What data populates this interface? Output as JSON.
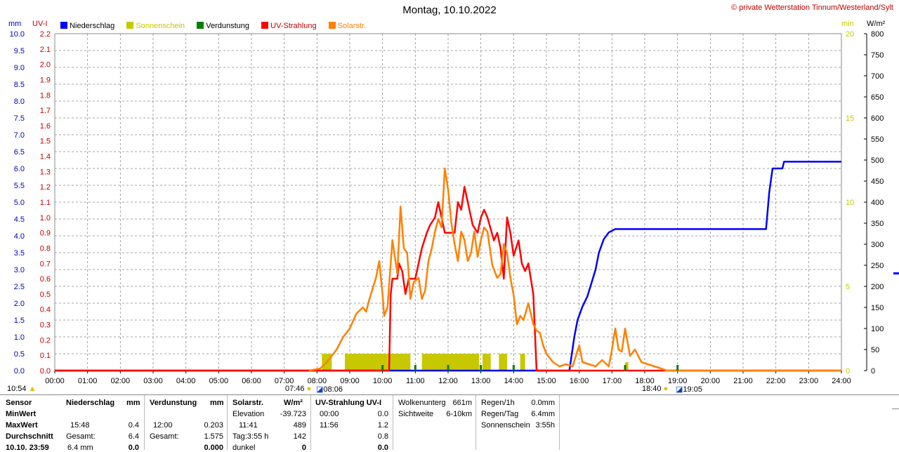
{
  "header": {
    "title": "Montag, 10.10.2022",
    "copyright": "© private Wetterstation Tinnum/Westerland/Sylt",
    "left_unit_mm": "mm",
    "left_unit_uv": "UV-I",
    "right_unit_min": "min",
    "right_unit_wm2": "W/m²"
  },
  "legend": [
    {
      "label": "Niederschlag",
      "color": "#0000ff"
    },
    {
      "label": "Sonnenschein",
      "color": "#c8c800"
    },
    {
      "label": "Verdunstung",
      "color": "#008000"
    },
    {
      "label": "UV-Strahlung",
      "color": "#ff0000"
    },
    {
      "label": "Solarstr.",
      "color": "#ff8000"
    }
  ],
  "chart_data": {
    "type": "line",
    "title": "Montag, 10.10.2022",
    "x_ticks": [
      "00:00",
      "01:00",
      "02:00",
      "03:00",
      "04:00",
      "05:00",
      "06:00",
      "07:00",
      "08:00",
      "09:00",
      "10:00",
      "11:00",
      "12:00",
      "13:00",
      "14:00",
      "15:00",
      "16:00",
      "17:00",
      "18:00",
      "19:00",
      "20:00",
      "21:00",
      "22:00",
      "23:00",
      "24:00"
    ],
    "axes": {
      "mm": {
        "range": [
          0,
          10
        ],
        "ticks": [
          "10.0",
          "9.5",
          "9.0",
          "8.5",
          "8.0",
          "7.5",
          "7.0",
          "6.5",
          "6.0",
          "5.5",
          "5.0",
          "4.5",
          "4.0",
          "3.5",
          "3.0",
          "2.5",
          "2.0",
          "1.5",
          "1.0",
          "0.5",
          "0.0"
        ],
        "color": "#0000c0"
      },
      "uv": {
        "range": [
          0,
          2.2
        ],
        "ticks": [
          "2.2",
          "2.1",
          "2.0",
          "1.9",
          "1.8",
          "1.7",
          "1.6",
          "1.5",
          "1.4",
          "1.3",
          "1.2",
          "1.1",
          "1.0",
          "0.9",
          "0.8",
          "0.7",
          "0.6",
          "0.5",
          "0.4",
          "0.3",
          "0.2",
          "0.1",
          "0.0"
        ],
        "color": "#c00000"
      },
      "min": {
        "range": [
          0,
          20
        ],
        "ticks": [
          "20",
          "15",
          "10",
          "5",
          "0"
        ],
        "color": "#c8c800"
      },
      "wm2": {
        "range": [
          0,
          800
        ],
        "ticks": [
          "800",
          "750",
          "700",
          "650",
          "600",
          "550",
          "500",
          "450",
          "400",
          "350",
          "300",
          "250",
          "200",
          "150",
          "100",
          "50",
          "0"
        ],
        "color": "#000000"
      }
    },
    "grid": true,
    "series": [
      {
        "name": "Niederschlag",
        "axis": "mm",
        "color": "#0000ff",
        "points": [
          [
            0,
            0
          ],
          [
            15.7,
            0
          ],
          [
            15.85,
            1.0
          ],
          [
            15.95,
            1.5
          ],
          [
            16.1,
            1.9
          ],
          [
            16.25,
            2.2
          ],
          [
            16.5,
            3.0
          ],
          [
            16.6,
            3.5
          ],
          [
            16.75,
            3.9
          ],
          [
            16.9,
            4.1
          ],
          [
            17.1,
            4.2
          ],
          [
            21.0,
            4.2
          ],
          [
            21.7,
            4.2
          ],
          [
            21.8,
            5.3
          ],
          [
            21.9,
            6.0
          ],
          [
            22.2,
            6.0
          ],
          [
            22.25,
            6.2
          ],
          [
            24.0,
            6.2
          ]
        ]
      },
      {
        "name": "UV-Strahlung",
        "axis": "uv",
        "color": "#ff0000",
        "points": [
          [
            0,
            0
          ],
          [
            10.2,
            0
          ],
          [
            10.25,
            0.5
          ],
          [
            10.3,
            0.6
          ],
          [
            10.45,
            0.6
          ],
          [
            10.5,
            0.7
          ],
          [
            10.6,
            0.65
          ],
          [
            10.7,
            0.5
          ],
          [
            10.8,
            0.6
          ],
          [
            11.0,
            0.6
          ],
          [
            11.2,
            0.8
          ],
          [
            11.35,
            0.9
          ],
          [
            11.45,
            0.95
          ],
          [
            11.6,
            1.0
          ],
          [
            11.7,
            1.1
          ],
          [
            11.8,
            1.0
          ],
          [
            11.9,
            0.9
          ],
          [
            12.0,
            0.9
          ],
          [
            12.2,
            0.9
          ],
          [
            12.3,
            1.1
          ],
          [
            12.4,
            1.05
          ],
          [
            12.5,
            1.2
          ],
          [
            12.6,
            1.1
          ],
          [
            12.75,
            0.95
          ],
          [
            12.9,
            0.9
          ],
          [
            13.0,
            1.0
          ],
          [
            13.1,
            1.05
          ],
          [
            13.2,
            1.0
          ],
          [
            13.4,
            0.85
          ],
          [
            13.5,
            0.9
          ],
          [
            13.6,
            0.8
          ],
          [
            13.7,
            0.6
          ],
          [
            13.8,
            1.0
          ],
          [
            13.9,
            0.9
          ],
          [
            14.0,
            0.75
          ],
          [
            14.15,
            0.85
          ],
          [
            14.25,
            0.7
          ],
          [
            14.35,
            0.65
          ],
          [
            14.45,
            0.7
          ],
          [
            14.6,
            0.5
          ],
          [
            14.7,
            0
          ],
          [
            24.0,
            0
          ]
        ]
      },
      {
        "name": "Solarstr.",
        "axis": "wm2",
        "color": "#ff8000",
        "points": [
          [
            7.76,
            0
          ],
          [
            8.1,
            5
          ],
          [
            8.3,
            20
          ],
          [
            8.6,
            50
          ],
          [
            8.8,
            80
          ],
          [
            9.0,
            100
          ],
          [
            9.2,
            135
          ],
          [
            9.4,
            150
          ],
          [
            9.5,
            140
          ],
          [
            9.6,
            170
          ],
          [
            9.8,
            220
          ],
          [
            9.9,
            260
          ],
          [
            10.0,
            180
          ],
          [
            10.05,
            130
          ],
          [
            10.15,
            150
          ],
          [
            10.3,
            310
          ],
          [
            10.45,
            230
          ],
          [
            10.55,
            390
          ],
          [
            10.65,
            290
          ],
          [
            10.75,
            280
          ],
          [
            10.85,
            170
          ],
          [
            10.95,
            210
          ],
          [
            11.1,
            220
          ],
          [
            11.2,
            170
          ],
          [
            11.3,
            190
          ],
          [
            11.4,
            260
          ],
          [
            11.5,
            290
          ],
          [
            11.6,
            330
          ],
          [
            11.7,
            360
          ],
          [
            11.8,
            340
          ],
          [
            11.9,
            480
          ],
          [
            12.0,
            430
          ],
          [
            12.1,
            350
          ],
          [
            12.2,
            300
          ],
          [
            12.3,
            260
          ],
          [
            12.4,
            330
          ],
          [
            12.5,
            310
          ],
          [
            12.6,
            260
          ],
          [
            12.7,
            280
          ],
          [
            12.8,
            330
          ],
          [
            12.9,
            270
          ],
          [
            13.0,
            310
          ],
          [
            13.1,
            340
          ],
          [
            13.2,
            330
          ],
          [
            13.35,
            250
          ],
          [
            13.5,
            220
          ],
          [
            13.6,
            230
          ],
          [
            13.7,
            300
          ],
          [
            13.8,
            280
          ],
          [
            13.9,
            220
          ],
          [
            14.0,
            180
          ],
          [
            14.1,
            110
          ],
          [
            14.2,
            130
          ],
          [
            14.3,
            120
          ],
          [
            14.45,
            160
          ],
          [
            14.6,
            110
          ],
          [
            14.7,
            95
          ],
          [
            14.8,
            90
          ],
          [
            14.9,
            60
          ],
          [
            15.0,
            40
          ],
          [
            15.2,
            20
          ],
          [
            15.4,
            10
          ],
          [
            15.6,
            15
          ],
          [
            15.8,
            10
          ],
          [
            16.0,
            60
          ],
          [
            16.1,
            20
          ],
          [
            16.3,
            15
          ],
          [
            16.5,
            10
          ],
          [
            16.7,
            25
          ],
          [
            16.9,
            10
          ],
          [
            17.0,
            50
          ],
          [
            17.1,
            100
          ],
          [
            17.2,
            50
          ],
          [
            17.3,
            45
          ],
          [
            17.4,
            100
          ],
          [
            17.55,
            35
          ],
          [
            17.7,
            50
          ],
          [
            17.9,
            20
          ],
          [
            18.1,
            15
          ],
          [
            18.3,
            10
          ],
          [
            18.5,
            5
          ],
          [
            18.67,
            0
          ],
          [
            24.0,
            0
          ]
        ]
      },
      {
        "name": "Sonnenschein",
        "axis": "min",
        "color": "#c8c800",
        "bars": [
          [
            8.15,
            8.45,
            1
          ],
          [
            8.85,
            10.15,
            1
          ],
          [
            10.15,
            10.85,
            1
          ],
          [
            11.2,
            12.95,
            1
          ],
          [
            13.05,
            13.3,
            1
          ],
          [
            13.55,
            13.8,
            1
          ],
          [
            14.2,
            14.35,
            1
          ],
          [
            17.4,
            17.5,
            0.5
          ]
        ]
      },
      {
        "name": "Verdunstung",
        "axis": "min",
        "color": "#008000",
        "marks": [
          10.0,
          11.0,
          12.0,
          13.0,
          14.0,
          17.4,
          19.0
        ]
      }
    ]
  },
  "sun_markers": {
    "sunrise_civil": "07:46",
    "sunrise": "08:06",
    "sunset": "18:40",
    "sunset_civil": "19:05",
    "moon": "10:54"
  },
  "table": {
    "sensor": {
      "header": "Sensor",
      "rows": [
        "MinWert",
        "MaxWert",
        "Durchschnitt",
        "10.10. 23:59"
      ]
    },
    "niederschlag": {
      "header": "Niederschlag",
      "unit": "mm",
      "max_time": "15:48",
      "max_val": "0.4",
      "gesamt_label": "Gesamt:",
      "gesamt_val": "6.4",
      "last_val": "6.4 mm",
      "last_extra": "0.0"
    },
    "verdunstung": {
      "header": "Verdunstung",
      "unit": "mm",
      "max_time": "12:00",
      "max_val": "0.203",
      "gesamt_label": "Gesamt:",
      "gesamt_val": "1.575",
      "last_val": "0.000"
    },
    "solar": {
      "header": "Solarstr.",
      "unit": "W/m²",
      "elevation_label": "Elevation",
      "elevation_val": "-39.723",
      "max_time": "11:41",
      "max_val": "489",
      "tag_label": "Tag:3:55 h",
      "tag_val": "142",
      "dunkel_label": "dunkel",
      "dunkel_val": "0"
    },
    "uv": {
      "header": "UV-Strahlung UV-I",
      "min_time": "00:00",
      "min_val": "0.0",
      "max_time": "11:56",
      "max_val": "1.2",
      "avg_val": "0.8",
      "last_val": "0.0"
    },
    "wolken": {
      "label1": "Wolkenunterg",
      "val1": "661m",
      "label2": "Sichtweite",
      "val2": "6-10km"
    },
    "regen": {
      "label1": "Regen/1h",
      "val1": "0.0mm",
      "label2": "Regen/Tag",
      "val2": "6.4mm",
      "label3": "Sonnenschein",
      "val3": "3:55h"
    }
  }
}
